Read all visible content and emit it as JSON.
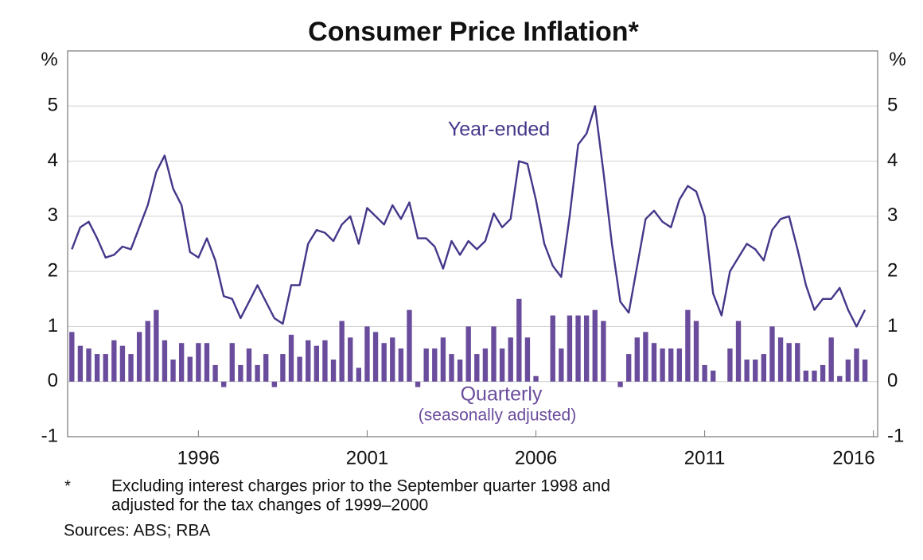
{
  "chart_data": {
    "type": "combo",
    "title": "Consumer Price Inflation*",
    "y_unit": "%",
    "ylim": [
      -1,
      6
    ],
    "yticks": [
      -1,
      0,
      1,
      2,
      3,
      4,
      5
    ],
    "xlim": [
      1992.625,
      2016.625
    ],
    "xticks": [
      {
        "value": 1996.5,
        "label": "1996"
      },
      {
        "value": 2001.5,
        "label": "2001"
      },
      {
        "value": 2006.5,
        "label": "2006"
      },
      {
        "value": 2011.5,
        "label": "2011"
      },
      {
        "value": 2016.5,
        "label": "2016"
      }
    ],
    "grid": true,
    "x": [
      1992.75,
      1993,
      1993.25,
      1993.5,
      1993.75,
      1994,
      1994.25,
      1994.5,
      1994.75,
      1995,
      1995.25,
      1995.5,
      1995.75,
      1996,
      1996.25,
      1996.5,
      1996.75,
      1997,
      1997.25,
      1997.5,
      1997.75,
      1998,
      1998.25,
      1998.5,
      1998.75,
      1999,
      1999.25,
      1999.5,
      1999.75,
      2000,
      2000.25,
      2000.5,
      2000.75,
      2001,
      2001.25,
      2001.5,
      2001.75,
      2002,
      2002.25,
      2002.5,
      2002.75,
      2003,
      2003.25,
      2003.5,
      2003.75,
      2004,
      2004.25,
      2004.5,
      2004.75,
      2005,
      2005.25,
      2005.5,
      2005.75,
      2006,
      2006.25,
      2006.5,
      2006.75,
      2007,
      2007.25,
      2007.5,
      2007.75,
      2008,
      2008.25,
      2008.5,
      2008.75,
      2009,
      2009.25,
      2009.5,
      2009.75,
      2010,
      2010.25,
      2010.5,
      2010.75,
      2011,
      2011.25,
      2011.5,
      2011.75,
      2012,
      2012.25,
      2012.5,
      2012.75,
      2013,
      2013.25,
      2013.5,
      2013.75,
      2014,
      2014.25,
      2014.5,
      2014.75,
      2015,
      2015.25,
      2015.5,
      2015.75,
      2016,
      2016.25
    ],
    "series": [
      {
        "name": "Year-ended",
        "type": "line",
        "color": "#46368a",
        "values": [
          2.4,
          2.8,
          2.9,
          2.6,
          2.25,
          2.3,
          2.45,
          2.4,
          2.8,
          3.2,
          3.8,
          4.1,
          3.5,
          3.2,
          2.35,
          2.25,
          2.6,
          2.2,
          1.55,
          1.5,
          1.15,
          1.45,
          1.75,
          1.45,
          1.15,
          1.05,
          1.75,
          1.75,
          2.5,
          2.75,
          2.7,
          2.55,
          2.85,
          3.0,
          2.5,
          3.15,
          3.0,
          2.85,
          3.2,
          2.95,
          3.25,
          2.6,
          2.6,
          2.45,
          2.05,
          2.55,
          2.3,
          2.55,
          2.4,
          2.55,
          3.05,
          2.8,
          2.95,
          4.0,
          3.95,
          3.3,
          2.5,
          2.1,
          1.9,
          3.0,
          4.3,
          4.5,
          5.0,
          3.8,
          2.5,
          1.45,
          1.25,
          2.1,
          2.95,
          3.1,
          2.9,
          2.8,
          3.3,
          3.55,
          3.45,
          3.0,
          1.6,
          1.2,
          2.0,
          2.25,
          2.5,
          2.4,
          2.2,
          2.75,
          2.95,
          3.0,
          2.4,
          1.75,
          1.3,
          1.5,
          1.5,
          1.7,
          1.3,
          1.0,
          1.3
        ]
      },
      {
        "name": "Quarterly",
        "type": "bar",
        "color": "#6a4c9c",
        "annotation": "(seasonally adjusted)",
        "values": [
          0.9,
          0.65,
          0.6,
          0.5,
          0.5,
          0.75,
          0.65,
          0.5,
          0.9,
          1.1,
          1.3,
          0.75,
          0.4,
          0.7,
          0.45,
          0.7,
          0.7,
          0.3,
          -0.1,
          0.7,
          0.3,
          0.6,
          0.3,
          0.5,
          -0.1,
          0.5,
          0.85,
          0.45,
          0.75,
          0.65,
          0.75,
          0.4,
          1.1,
          0.8,
          0.25,
          1.0,
          0.9,
          0.7,
          0.8,
          0.6,
          1.3,
          -0.1,
          0.6,
          0.6,
          0.8,
          0.5,
          0.4,
          1.0,
          0.5,
          0.6,
          1.0,
          0.6,
          0.8,
          1.5,
          0.8,
          0.1,
          0,
          1.2,
          0.6,
          1.2,
          1.2,
          1.2,
          1.3,
          1.1,
          0,
          -0.1,
          0.5,
          0.8,
          0.9,
          0.7,
          0.6,
          0.6,
          0.6,
          1.3,
          1.1,
          0.3,
          0.2,
          0,
          0.6,
          1.1,
          0.4,
          0.4,
          0.5,
          1.0,
          0.8,
          0.7,
          0.7,
          0.2,
          0.2,
          0.3,
          0.8,
          0.1,
          0.4,
          0.6,
          0.4
        ]
      }
    ],
    "footnote_marker": "*",
    "footnote": [
      "Excluding interest charges prior to the September quarter 1998 and",
      "adjusted for the tax changes of 1999–2000"
    ],
    "sources": "Sources:   ABS; RBA"
  }
}
